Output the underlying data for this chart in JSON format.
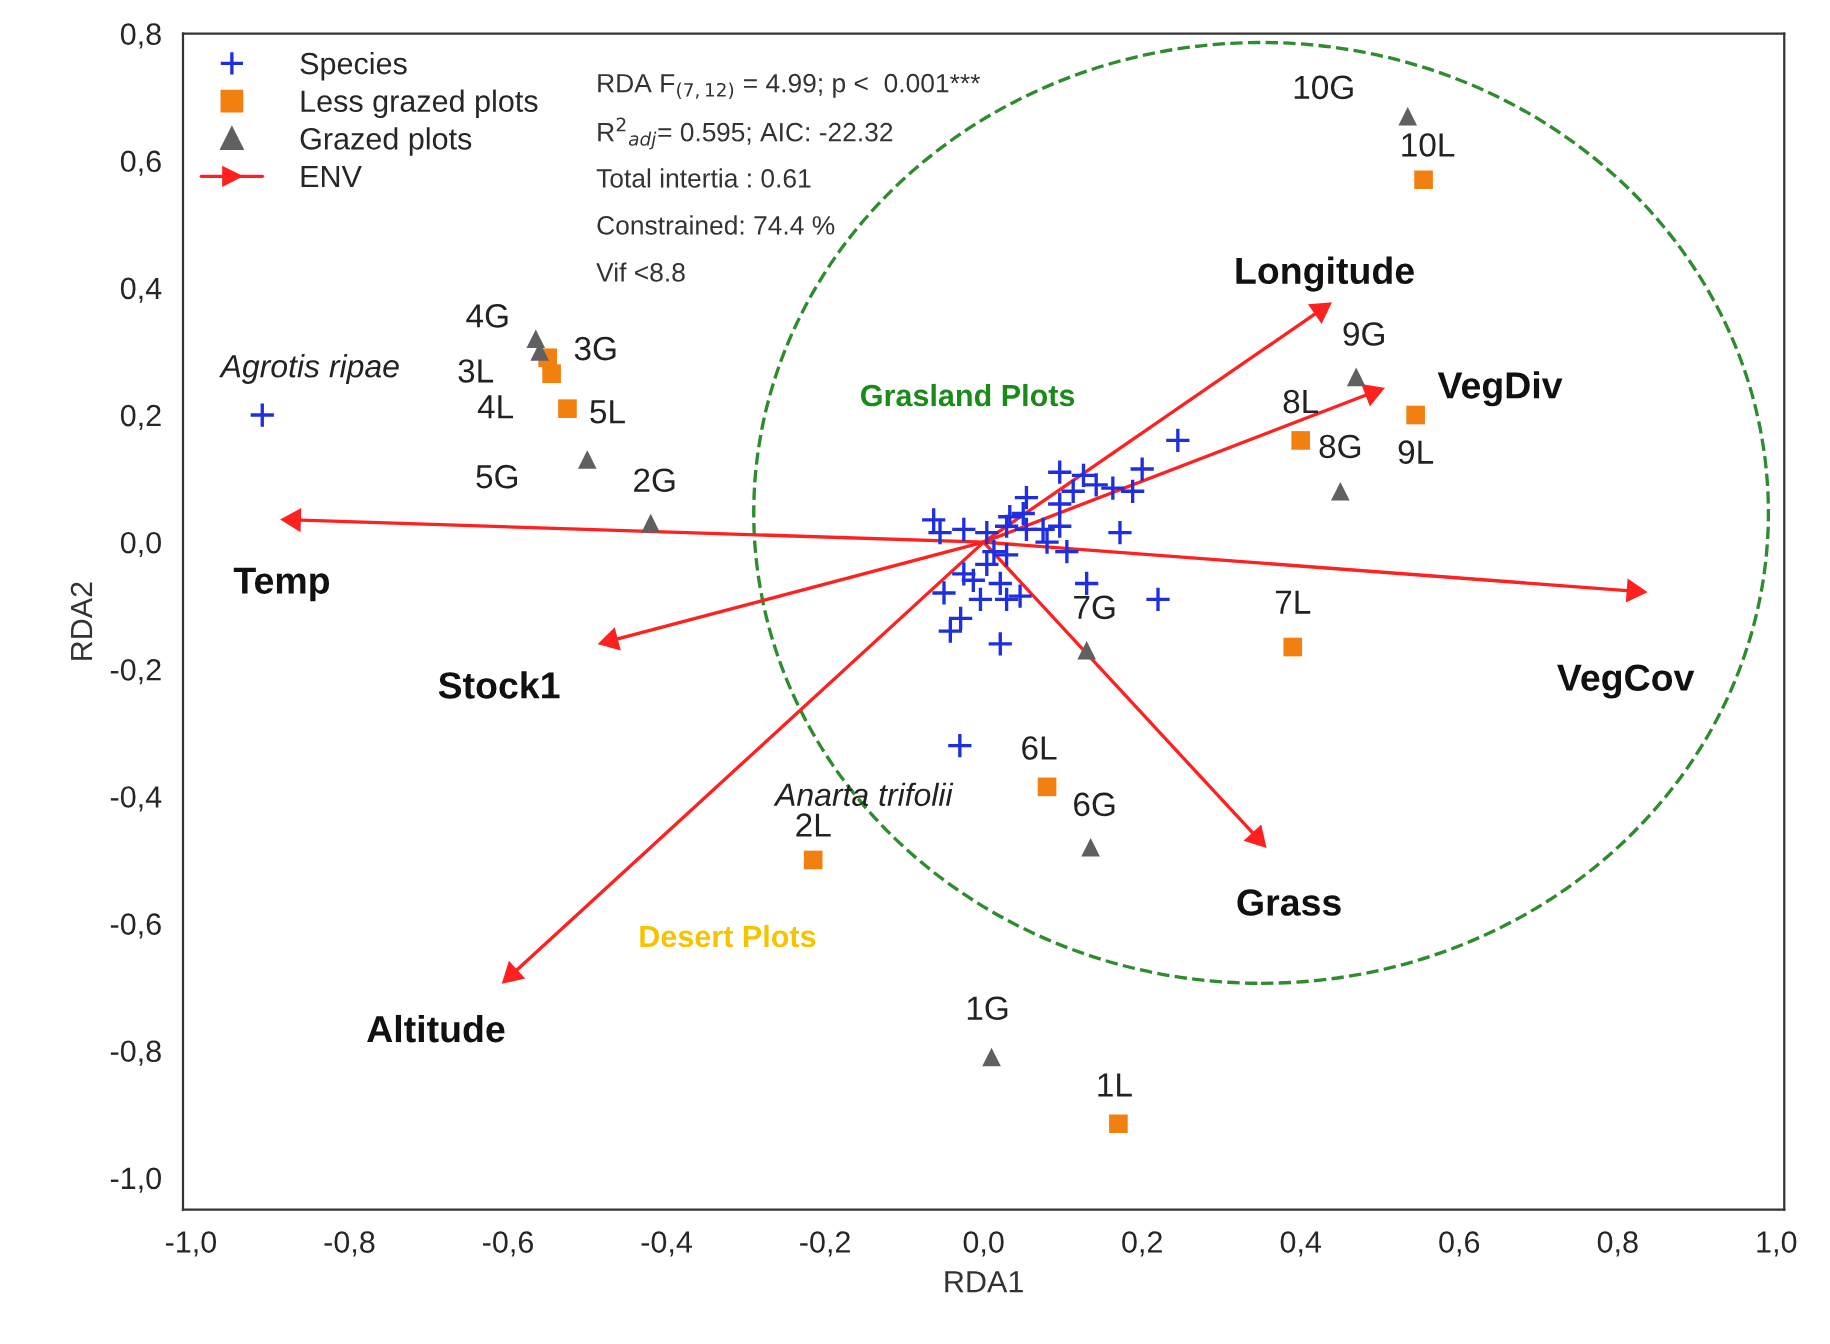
{
  "chart_data": {
    "type": "scatter",
    "xlabel": "RDA1",
    "ylabel": "RDA2",
    "xlim": [
      -1.01,
      1.01
    ],
    "ylim": [
      -1.05,
      0.8
    ],
    "xticks": [
      {
        "value": -1.0,
        "label": "-1,0"
      },
      {
        "value": -0.8,
        "label": "-0,8"
      },
      {
        "value": -0.6,
        "label": "-0,6"
      },
      {
        "value": -0.4,
        "label": "-0,4"
      },
      {
        "value": -0.2,
        "label": "-0,2"
      },
      {
        "value": 0.0,
        "label": "0,0"
      },
      {
        "value": 0.2,
        "label": "0,2"
      },
      {
        "value": 0.4,
        "label": "0,4"
      },
      {
        "value": 0.6,
        "label": "0,6"
      },
      {
        "value": 0.8,
        "label": "0,8"
      },
      {
        "value": 1.0,
        "label": "1,0"
      }
    ],
    "yticks": [
      {
        "value": -1.0,
        "label": "-1,0"
      },
      {
        "value": -0.8,
        "label": "-0,8"
      },
      {
        "value": -0.6,
        "label": "-0,6"
      },
      {
        "value": -0.4,
        "label": "-0,4"
      },
      {
        "value": -0.2,
        "label": "-0,2"
      },
      {
        "value": 0.0,
        "label": "0,0"
      },
      {
        "value": 0.2,
        "label": "0,2"
      },
      {
        "value": 0.4,
        "label": "0,4"
      },
      {
        "value": 0.6,
        "label": "0,6"
      },
      {
        "value": 0.8,
        "label": "0,8"
      }
    ],
    "grid": false,
    "legend": "top left",
    "series": [
      {
        "name": "Species",
        "marker": "cross",
        "color": "#1f2fe0",
        "x": [
          -0.91,
          -0.03,
          0.245,
          0.2,
          0.096,
          0.126,
          0.142,
          0.163,
          0.188,
          0.113,
          0.054,
          0.096,
          0.172,
          -0.063,
          -0.055,
          -0.025,
          0.004,
          0.029,
          0.054,
          0.075,
          0.096,
          0.08,
          0.105,
          0.013,
          0.029,
          0.004,
          -0.025,
          -0.013,
          -0.05,
          0.021,
          0.046,
          -0.004,
          0.029,
          0.13,
          0.22,
          -0.029,
          -0.042,
          0.021,
          0.033,
          0.05
        ],
        "values": [
          0.2,
          -0.32,
          0.16,
          0.115,
          0.11,
          0.105,
          0.09,
          0.085,
          0.08,
          0.08,
          0.07,
          0.06,
          0.015,
          0.035,
          0.015,
          0.02,
          0.015,
          0.025,
          0.02,
          0.02,
          0.025,
          0.0,
          -0.015,
          -0.015,
          -0.02,
          -0.035,
          -0.05,
          -0.06,
          -0.08,
          -0.065,
          -0.085,
          -0.09,
          -0.09,
          -0.065,
          -0.09,
          -0.12,
          -0.14,
          -0.16,
          0.04,
          0.045
        ]
      },
      {
        "name": "Less grazed plots",
        "marker": "square",
        "color": "#f28010",
        "x": [
          0.17,
          -0.215,
          -0.55,
          -0.545,
          -0.525,
          0.08,
          0.39,
          0.4,
          0.545,
          0.555
        ],
        "values": [
          -0.915,
          -0.5,
          0.29,
          0.265,
          0.21,
          -0.385,
          -0.165,
          0.16,
          0.2,
          0.57
        ]
      },
      {
        "name": "Grazed plots",
        "marker": "triangle",
        "color": "#606060",
        "x": [
          0.01,
          -0.42,
          -0.56,
          -0.565,
          -0.5,
          0.135,
          0.13,
          0.45,
          0.47,
          0.535
        ],
        "values": [
          -0.81,
          0.03,
          0.3,
          0.32,
          0.13,
          -0.48,
          -0.17,
          0.08,
          0.26,
          0.67
        ]
      },
      {
        "name": "ENV",
        "type": "line",
        "line_style": "solid",
        "color": "#ff2020",
        "x": [
          0,
          0.425,
          null,
          0,
          0.49,
          null,
          0,
          0.82,
          null,
          0,
          0.345,
          null,
          0,
          -0.595,
          null,
          0,
          -0.47,
          null,
          0,
          -0.87
        ],
        "values": [
          0,
          0.365,
          null,
          0,
          0.235,
          null,
          0,
          -0.077,
          null,
          0,
          -0.465,
          null,
          0,
          -0.68,
          null,
          0,
          -0.155,
          null,
          0,
          0.035
        ]
      }
    ],
    "annotations": [
      "RDA F$_{(7,12)}$ = 4.99; p <  0.001***",
      "R$^{2}$$_{adj}$= 0.595; AIC: -22.32",
      "Total intertia : 0.61",
      "Constrained: 74.4 %",
      "Vif <8.8",
      "Grasland Plots",
      "Desert Plots",
      {
        "text": "Agrotis ripae",
        "x": -0.91,
        "y": 0.2
      },
      {
        "text": "Anarta trifolii",
        "x": -0.03,
        "y": -0.32
      },
      {
        "text": "Longitude",
        "x": 0.425,
        "y": 0.365
      },
      {
        "text": "VegDiv",
        "x": 0.49,
        "y": 0.235
      },
      {
        "text": "VegCov",
        "x": 0.82,
        "y": -0.077
      },
      {
        "text": "Grass",
        "x": 0.345,
        "y": -0.465
      },
      {
        "text": "Altitude",
        "x": -0.595,
        "y": -0.68
      },
      {
        "text": "Stock1",
        "x": -0.47,
        "y": -0.155
      },
      {
        "text": "Temp",
        "x": -0.87,
        "y": 0.035
      },
      {
        "text": "1L",
        "x": 0.17,
        "y": -0.915
      },
      {
        "text": "2L",
        "x": -0.215,
        "y": -0.5
      },
      {
        "text": "3L",
        "x": -0.55,
        "y": 0.29
      },
      {
        "text": "4L",
        "x": -0.545,
        "y": 0.265
      },
      {
        "text": "5L",
        "x": -0.525,
        "y": 0.21
      },
      {
        "text": "6L",
        "x": 0.08,
        "y": -0.385
      },
      {
        "text": "7L",
        "x": 0.39,
        "y": -0.165
      },
      {
        "text": "8L",
        "x": 0.4,
        "y": 0.16
      },
      {
        "text": "9L",
        "x": 0.545,
        "y": 0.2
      },
      {
        "text": "10L",
        "x": 0.555,
        "y": 0.57
      },
      {
        "text": "1G",
        "x": 0.01,
        "y": -0.81
      },
      {
        "text": "2G",
        "x": -0.42,
        "y": 0.03
      },
      {
        "text": "3G",
        "x": -0.56,
        "y": 0.3
      },
      {
        "text": "4G",
        "x": -0.565,
        "y": 0.32
      },
      {
        "text": "5G",
        "x": -0.5,
        "y": 0.13
      },
      {
        "text": "6G",
        "x": 0.135,
        "y": -0.48
      },
      {
        "text": "7G",
        "x": 0.13,
        "y": -0.17
      },
      {
        "text": "8G",
        "x": 0.45,
        "y": 0.08
      },
      {
        "text": "9G",
        "x": 0.47,
        "y": 0.26
      },
      {
        "text": "10G",
        "x": 0.535,
        "y": 0.67
      }
    ]
  }
}
